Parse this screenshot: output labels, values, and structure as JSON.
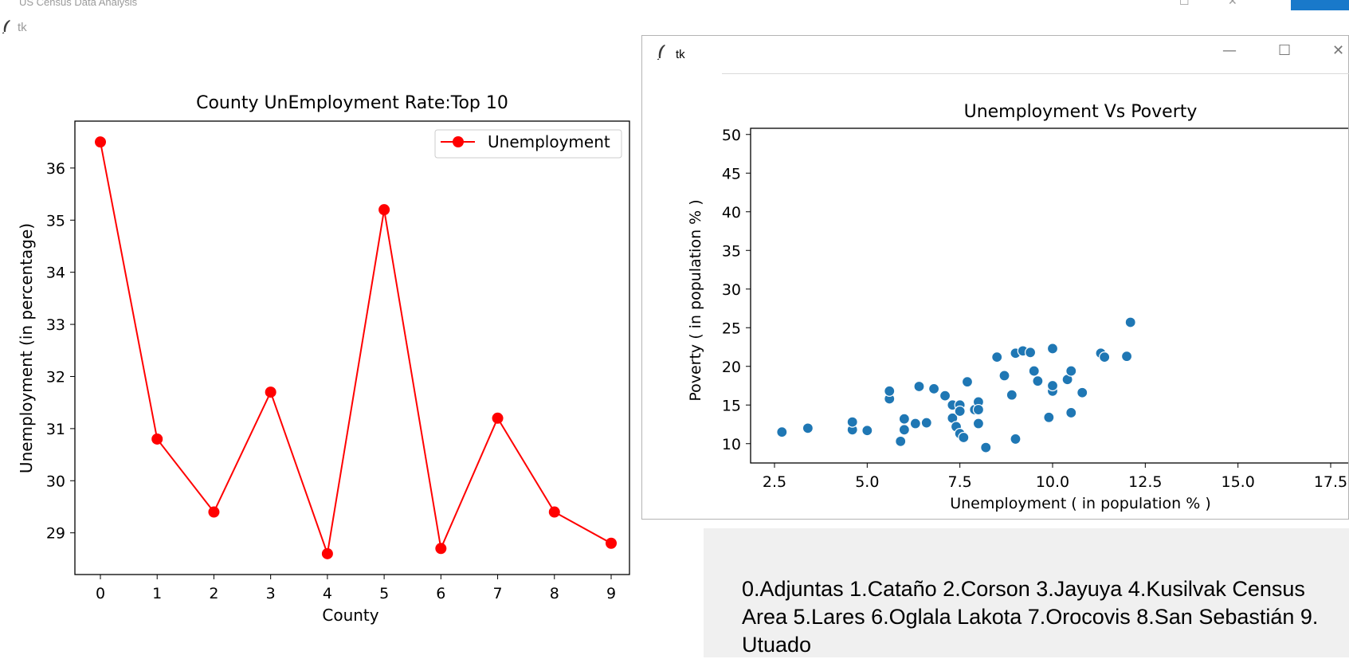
{
  "topbar": {
    "title": "US Census Data Analysis"
  },
  "window1": {
    "title": "tk"
  },
  "window2": {
    "title": "tk"
  },
  "icons": [
    "tk-feather-icon",
    "minimize-icon",
    "maximize-icon",
    "close-icon"
  ],
  "colors": {
    "line": "#ff0000",
    "scatter": "#1f77b4",
    "panel_bg": "#f0f0f0",
    "accent_blue": "#1979ca"
  },
  "county_legend_text": "0.Adjuntas 1.Cataño 2.Corson 3.Jayuya 4.Kusilvak Census Area 5.Lares 6.Oglala Lakota 7.Orocovis 8.San Sebastián 9. Utuado",
  "chart_data": [
    {
      "type": "line",
      "title": "County UnEmployment Rate:Top 10",
      "xlabel": "County",
      "ylabel": "Unemployment (in percentage)",
      "categories": [
        "0",
        "1",
        "2",
        "3",
        "4",
        "5",
        "6",
        "7",
        "8",
        "9"
      ],
      "series": [
        {
          "name": "Unemployment",
          "values": [
            36.5,
            30.8,
            29.4,
            31.7,
            28.6,
            35.2,
            28.7,
            31.2,
            29.4,
            28.8
          ]
        }
      ],
      "yticks": [
        "29",
        "30",
        "31",
        "32",
        "33",
        "34",
        "35",
        "36"
      ],
      "ylim": [
        28.2,
        36.9
      ],
      "legend": "top-right",
      "grid": false
    },
    {
      "type": "scatter",
      "title": "Unemployment Vs Poverty",
      "xlabel": "Unemployment ( in population % )",
      "ylabel": "Poverty ( in population % )",
      "xticks": [
        "2.5",
        "5.0",
        "7.5",
        "10.0",
        "12.5",
        "15.0",
        "17.5"
      ],
      "yticks": [
        "10",
        "15",
        "20",
        "25",
        "30",
        "35",
        "40",
        "45",
        "50"
      ],
      "xlim": [
        1.9,
        18.5
      ],
      "ylim": [
        7.5,
        50.8
      ],
      "grid": false,
      "points": [
        [
          2.7,
          11.5
        ],
        [
          3.4,
          12.0
        ],
        [
          4.6,
          11.8
        ],
        [
          4.6,
          12.8
        ],
        [
          5.0,
          11.7
        ],
        [
          5.6,
          15.8
        ],
        [
          5.6,
          16.8
        ],
        [
          5.9,
          10.3
        ],
        [
          6.0,
          11.8
        ],
        [
          6.0,
          13.2
        ],
        [
          6.3,
          12.6
        ],
        [
          6.4,
          17.4
        ],
        [
          6.6,
          12.7
        ],
        [
          6.8,
          17.1
        ],
        [
          7.1,
          16.2
        ],
        [
          7.3,
          13.3
        ],
        [
          7.3,
          15.0
        ],
        [
          7.4,
          12.2
        ],
        [
          7.5,
          15.0
        ],
        [
          7.5,
          14.2
        ],
        [
          7.5,
          11.3
        ],
        [
          7.6,
          10.8
        ],
        [
          7.7,
          18.0
        ],
        [
          7.9,
          14.4
        ],
        [
          8.0,
          15.4
        ],
        [
          8.0,
          14.4
        ],
        [
          8.0,
          12.6
        ],
        [
          8.2,
          9.5
        ],
        [
          8.5,
          21.2
        ],
        [
          8.7,
          18.8
        ],
        [
          8.9,
          16.3
        ],
        [
          9.0,
          21.7
        ],
        [
          9.0,
          10.6
        ],
        [
          9.2,
          22.0
        ],
        [
          9.4,
          21.8
        ],
        [
          9.5,
          19.4
        ],
        [
          9.6,
          18.1
        ],
        [
          9.9,
          13.4
        ],
        [
          10.0,
          16.8
        ],
        [
          10.0,
          17.5
        ],
        [
          10.0,
          22.3
        ],
        [
          10.4,
          18.3
        ],
        [
          10.5,
          19.4
        ],
        [
          10.5,
          14.0
        ],
        [
          10.8,
          16.6
        ],
        [
          11.3,
          21.7
        ],
        [
          11.4,
          21.2
        ],
        [
          12.0,
          21.3
        ],
        [
          12.1,
          25.7
        ]
      ]
    }
  ]
}
